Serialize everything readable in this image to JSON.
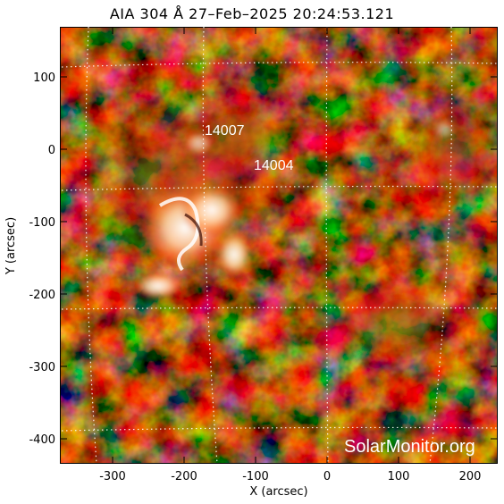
{
  "title": "AIA 304 Å 27–Feb–2025 20:24:53.121",
  "x_axis": {
    "label": "X (arcsec)",
    "ticks": [
      "-300",
      "-200",
      "-100",
      "0",
      "100",
      "200"
    ]
  },
  "y_axis": {
    "label": "Y (arcsec)",
    "ticks": [
      "100",
      "0",
      "-100",
      "-200",
      "-300",
      "-400"
    ]
  },
  "active_regions": [
    "14007",
    "14004"
  ],
  "watermark": "SolarMonitor.org",
  "colors": {
    "background": "#000000",
    "bright": "#ffffff",
    "mid": "#c83a12",
    "dim": "#5a0e02"
  }
}
